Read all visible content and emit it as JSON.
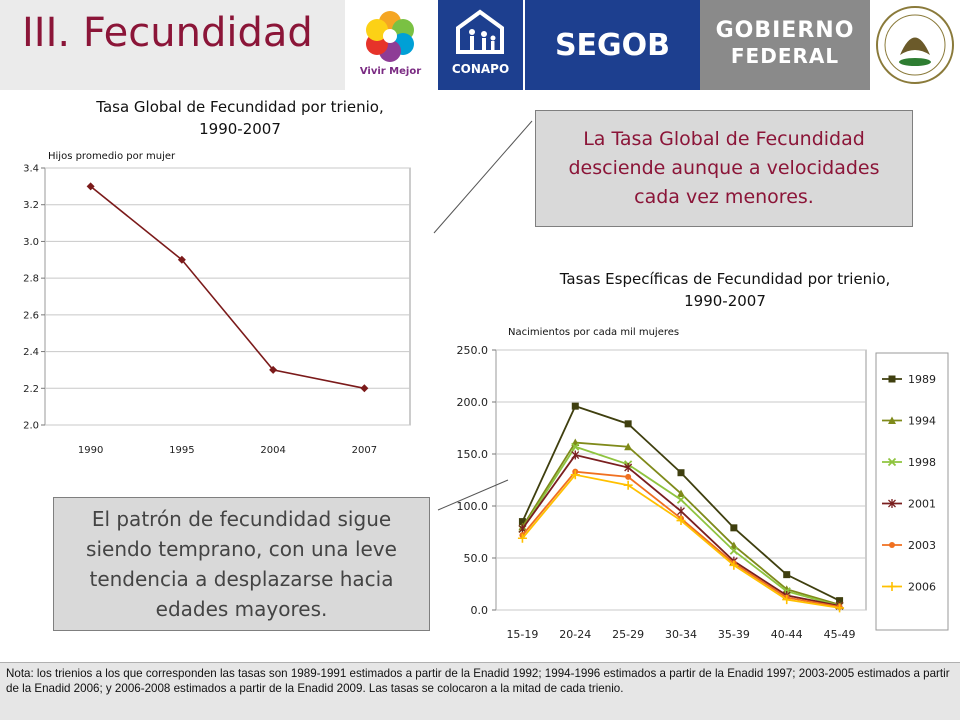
{
  "header": {
    "title": "III. Fecundidad",
    "logos": {
      "vivir_mejor": "Vivir Mejor",
      "conapo": "CONAPO",
      "segob": "SEGOB",
      "gobierno_line1": "GOBIERNO",
      "gobierno_line2": "FEDERAL"
    }
  },
  "callouts": {
    "top": "La Tasa Global de Fecundidad desciende aunque a velocidades cada vez menores.",
    "bottom": "El patrón de fecundidad sigue siendo temprano, con una leve tendencia a desplazarse hacia edades mayores."
  },
  "note": "Nota: los trienios a los que corresponden las tasas son 1989-1991 estimados a partir de la Enadid 1992; 1994-1996 estimados a partir de la Enadid 1997; 2003-2005 estimados a partir de la Enadid 2006; y 2006-2008 estimados a partir de la Enadid 2009. Las tasas se colocaron a la mitad de cada trienio.",
  "colors": {
    "accent": "#8b1538",
    "tgf_line": "#7b1a1a"
  },
  "chart_data": [
    {
      "type": "line",
      "title_line1": "Tasa Global de Fecundidad por trienio,",
      "title_line2": "1990-2007",
      "ylabel": "Hijos promedio por mujer",
      "categories": [
        "1990",
        "1995",
        "2004",
        "2007"
      ],
      "values": [
        3.3,
        2.9,
        2.3,
        2.2
      ],
      "ylim": [
        2.0,
        3.4
      ],
      "yticks": [
        "2.0",
        "2.2",
        "2.4",
        "2.6",
        "2.8",
        "3.0",
        "3.2",
        "3.4"
      ],
      "grid": true,
      "legend": "none"
    },
    {
      "type": "line",
      "title_line1": "Tasas Específicas de Fecundidad por trienio,",
      "title_line2": "1990-2007",
      "ylabel": "Nacimientos por cada mil mujeres",
      "categories": [
        "15-19",
        "20-24",
        "25-29",
        "30-34",
        "35-39",
        "40-44",
        "45-49"
      ],
      "ylim": [
        0,
        250
      ],
      "yticks": [
        "0.0",
        "50.0",
        "100.0",
        "150.0",
        "200.0",
        "250.0"
      ],
      "grid": true,
      "legend": "right",
      "series": [
        {
          "name": "1989",
          "color": "#3f3f0f",
          "marker": "square",
          "values": [
            85,
            196,
            179,
            132,
            79,
            34,
            9
          ]
        },
        {
          "name": "1994",
          "color": "#7f8a1a",
          "marker": "triangle",
          "values": [
            80,
            161,
            157,
            112,
            62,
            20,
            5
          ]
        },
        {
          "name": "1998",
          "color": "#8fc43f",
          "marker": "x",
          "values": [
            78,
            157,
            140,
            106,
            57,
            18,
            4
          ]
        },
        {
          "name": "2001",
          "color": "#7a1f1f",
          "marker": "star",
          "values": [
            78,
            149,
            137,
            95,
            47,
            14,
            4
          ]
        },
        {
          "name": "2003",
          "color": "#f07020",
          "marker": "circle",
          "values": [
            72,
            133,
            128,
            88,
            45,
            12,
            3
          ]
        },
        {
          "name": "2006",
          "color": "#ffc000",
          "marker": "plus",
          "values": [
            69,
            130,
            120,
            86,
            43,
            10,
            2
          ]
        }
      ]
    }
  ]
}
